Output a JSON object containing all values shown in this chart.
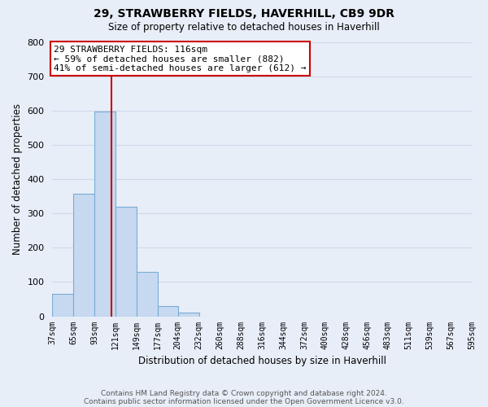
{
  "title": "29, STRAWBERRY FIELDS, HAVERHILL, CB9 9DR",
  "subtitle": "Size of property relative to detached houses in Haverhill",
  "xlabel": "Distribution of detached houses by size in Haverhill",
  "ylabel": "Number of detached properties",
  "bar_edges": [
    37,
    65,
    93,
    121,
    149,
    177,
    204,
    232,
    260,
    288,
    316,
    344,
    372,
    400,
    428,
    456,
    483,
    511,
    539,
    567,
    595
  ],
  "bar_heights": [
    65,
    357,
    597,
    320,
    130,
    30,
    10,
    0,
    0,
    0,
    0,
    0,
    0,
    0,
    0,
    0,
    0,
    0,
    0,
    0
  ],
  "bar_color": "#c6d9f0",
  "bar_edge_color": "#7aacd4",
  "property_line_x": 116,
  "property_line_color": "#cc0000",
  "ylim": [
    0,
    800
  ],
  "yticks": [
    0,
    100,
    200,
    300,
    400,
    500,
    600,
    700,
    800
  ],
  "xtick_labels": [
    "37sqm",
    "65sqm",
    "93sqm",
    "121sqm",
    "149sqm",
    "177sqm",
    "204sqm",
    "232sqm",
    "260sqm",
    "288sqm",
    "316sqm",
    "344sqm",
    "372sqm",
    "400sqm",
    "428sqm",
    "456sqm",
    "483sqm",
    "511sqm",
    "539sqm",
    "567sqm",
    "595sqm"
  ],
  "annotation_text": "29 STRAWBERRY FIELDS: 116sqm\n← 59% of detached houses are smaller (882)\n41% of semi-detached houses are larger (612) →",
  "annotation_box_color": "#ffffff",
  "annotation_box_edge": "#cc0000",
  "grid_color": "#d0d8e8",
  "background_color": "#e8eef8",
  "footer_line1": "Contains HM Land Registry data © Crown copyright and database right 2024.",
  "footer_line2": "Contains public sector information licensed under the Open Government Licence v3.0."
}
